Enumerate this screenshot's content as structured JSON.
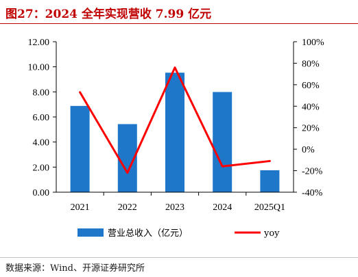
{
  "figure": {
    "title": "图27：2024 全年实现营收 7.99 亿元",
    "source": "数据来源：Wind、开源证券研究所"
  },
  "colors": {
    "title": "#c00000",
    "bar": "#1f77c9",
    "line": "#ff0000",
    "axis": "#000000"
  },
  "chart_data": {
    "type": "bar",
    "categories": [
      "2021",
      "2022",
      "2023",
      "2024",
      "2025Q1"
    ],
    "series": [
      {
        "name": "营业总收入（亿元）",
        "type": "bar",
        "axis": "left",
        "values": [
          6.88,
          5.43,
          9.53,
          7.99,
          1.75
        ]
      },
      {
        "name": "yoy",
        "type": "line",
        "axis": "right",
        "values": [
          53,
          -22,
          76,
          -16,
          -11
        ]
      }
    ],
    "ylim": [
      0,
      12
    ],
    "yticks": [
      "0.00",
      "2.00",
      "4.00",
      "6.00",
      "8.00",
      "10.00",
      "12.00"
    ],
    "y2lim": [
      -40,
      100
    ],
    "y2ticks": [
      "-40%",
      "-20%",
      "0%",
      "20%",
      "40%",
      "60%",
      "80%",
      "100%"
    ],
    "grid": false,
    "legend": "bottom"
  }
}
